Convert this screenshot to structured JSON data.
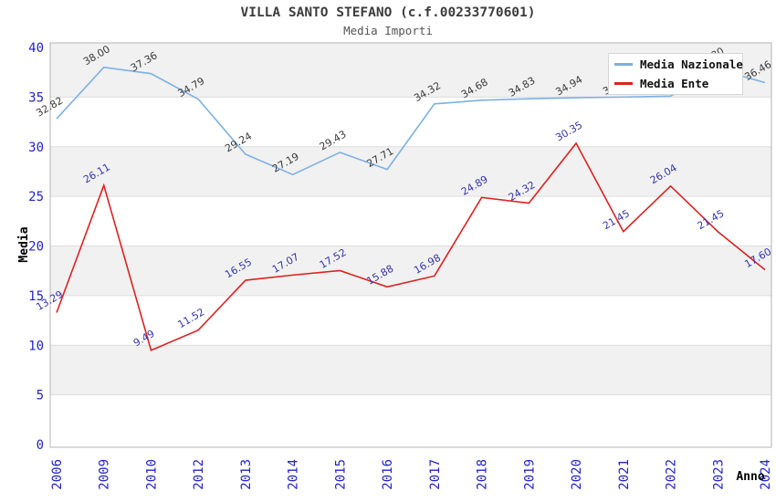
{
  "header": {
    "title": "VILLA SANTO STEFANO (c.f.00233770601)",
    "subtitle": "Media Importi"
  },
  "legend": {
    "items": [
      {
        "label": "Media Nazionale",
        "color": "#7DB0E3"
      },
      {
        "label": "Media Ente",
        "color": "#E02020"
      }
    ]
  },
  "chart_data": {
    "type": "line",
    "title": "VILLA SANTO STEFANO (c.f.00233770601)",
    "subtitle": "Media Importi",
    "xlabel": "Anno",
    "ylabel": "Media",
    "ylim": [
      0,
      40.5
    ],
    "y_ticks": [
      0,
      5,
      10,
      15,
      20,
      25,
      30,
      35,
      40
    ],
    "grid": true,
    "legend_position": "top-right",
    "categories": [
      "2006",
      "2009",
      "2010",
      "2012",
      "2013",
      "2014",
      "2015",
      "2016",
      "2017",
      "2018",
      "2019",
      "2020",
      "2021",
      "2022",
      "2023",
      "2024"
    ],
    "series": [
      {
        "name": "Media Nazionale",
        "color": "#7DB0E3",
        "label_color": "#3A3A3A",
        "values": [
          32.82,
          38.0,
          37.36,
          34.79,
          29.24,
          27.19,
          29.43,
          27.71,
          34.32,
          34.68,
          34.83,
          34.94,
          35.0,
          35.1,
          37.8,
          36.46
        ],
        "labels_covered_by_legend_indices": [
          12,
          13,
          14
        ]
      },
      {
        "name": "Media Ente",
        "color": "#E02020",
        "label_color": "#3434AC",
        "values": [
          13.29,
          26.11,
          9.49,
          11.52,
          16.55,
          17.07,
          17.52,
          15.88,
          16.98,
          24.89,
          24.32,
          30.35,
          21.45,
          26.04,
          21.45,
          17.6
        ]
      }
    ],
    "axis_tick_color": "#2222CC",
    "band_colors": [
      "#FFFFFF",
      "#F1F1F1"
    ]
  },
  "colors": {
    "grid": "#DEDEDE",
    "plot_border": "#B4B4B4",
    "axis_title": "#000000"
  }
}
